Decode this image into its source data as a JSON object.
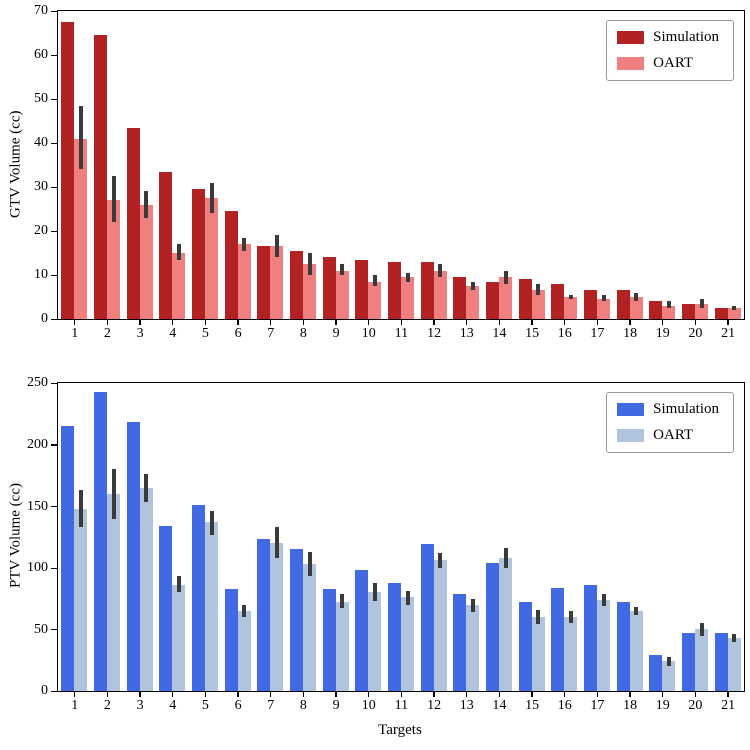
{
  "chart_data": [
    {
      "type": "bar",
      "title": "",
      "ylabel": "GTV Volume (cc)",
      "xlabel": "",
      "ylim": [
        0,
        70
      ],
      "yticks": [
        0,
        10,
        20,
        30,
        40,
        50,
        60,
        70
      ],
      "grid": false,
      "legend_position": "upper right",
      "error_bar_color": "#3a3a3a",
      "categories": [
        "1",
        "2",
        "3",
        "4",
        "5",
        "6",
        "7",
        "8",
        "9",
        "10",
        "11",
        "12",
        "13",
        "14",
        "15",
        "16",
        "17",
        "18",
        "19",
        "20",
        "21"
      ],
      "series": [
        {
          "name": "Simulation",
          "color": "#b22222",
          "values": [
            67.5,
            64.5,
            43.5,
            33.5,
            29.5,
            24.5,
            16.5,
            15.5,
            14,
            13.5,
            13,
            13,
            9.5,
            8.5,
            9,
            8,
            6.5,
            6.5,
            4,
            3.5,
            2.5
          ]
        },
        {
          "name": "OART",
          "color": "#f08080",
          "values": [
            41,
            27,
            26,
            15,
            27.5,
            17,
            16.5,
            12.5,
            11,
            8.5,
            9.5,
            11,
            7.5,
            9.5,
            6.5,
            5,
            4.5,
            5,
            3,
            3.5,
            2.5
          ],
          "errors": [
            [
              34,
              48.5
            ],
            [
              22,
              32.5
            ],
            [
              23,
              29
            ],
            [
              13.5,
              17
            ],
            [
              24,
              31
            ],
            [
              15.5,
              18.5
            ],
            [
              14,
              19
            ],
            [
              10,
              15
            ],
            [
              10,
              12.5
            ],
            [
              7.5,
              10
            ],
            [
              8.5,
              10.5
            ],
            [
              9.5,
              12.5
            ],
            [
              6.5,
              8.5
            ],
            [
              8,
              11
            ],
            [
              5.5,
              8
            ],
            [
              4.5,
              5.5
            ],
            [
              4,
              5.5
            ],
            [
              4,
              6
            ],
            [
              2.5,
              4
            ],
            [
              2.5,
              4.5
            ],
            [
              2,
              3
            ]
          ]
        }
      ]
    },
    {
      "type": "bar",
      "title": "",
      "ylabel": "PTV Volume (cc)",
      "xlabel": "Targets",
      "ylim": [
        0,
        250
      ],
      "yticks": [
        0,
        50,
        100,
        150,
        200,
        250
      ],
      "grid": false,
      "legend_position": "upper right",
      "error_bar_color": "#3a3a3a",
      "categories": [
        "1",
        "2",
        "3",
        "4",
        "5",
        "6",
        "7",
        "8",
        "9",
        "10",
        "11",
        "12",
        "13",
        "14",
        "15",
        "16",
        "17",
        "18",
        "19",
        "20",
        "21"
      ],
      "series": [
        {
          "name": "Simulation",
          "color": "#4169e1",
          "values": [
            215,
            243,
            218,
            134,
            151,
            83,
            123,
            115,
            83,
            98,
            88,
            119,
            79,
            104,
            72,
            84,
            86,
            72,
            29,
            47,
            47
          ]
        },
        {
          "name": "OART",
          "color": "#b0c4de",
          "values": [
            148,
            160,
            165,
            86,
            137,
            65,
            120,
            103,
            72,
            80,
            76,
            106,
            70,
            108,
            60,
            60,
            74,
            65,
            24,
            50,
            43
          ],
          "errors": [
            [
              133,
              163
            ],
            [
              140,
              180
            ],
            [
              153,
              176
            ],
            [
              80,
              93
            ],
            [
              127,
              146
            ],
            [
              60,
              70
            ],
            [
              108,
              133
            ],
            [
              93,
              113
            ],
            [
              67,
              79
            ],
            [
              73,
              88
            ],
            [
              70,
              81
            ],
            [
              100,
              112
            ],
            [
              64,
              75
            ],
            [
              100,
              116
            ],
            [
              54,
              66
            ],
            [
              55,
              65
            ],
            [
              69,
              79
            ],
            [
              62,
              68
            ],
            [
              20,
              28
            ],
            [
              45,
              55
            ],
            [
              40,
              46
            ]
          ]
        }
      ]
    }
  ]
}
